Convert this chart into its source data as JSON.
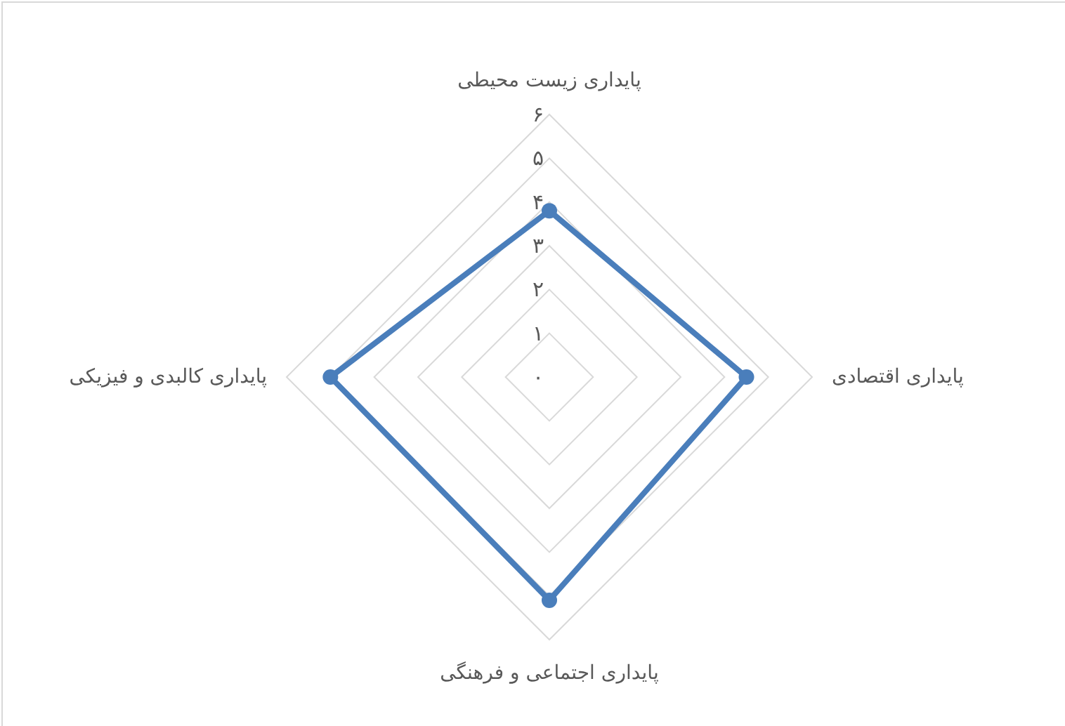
{
  "chart_data": {
    "type": "radar",
    "categories": [
      "پایداری زیست محیطی",
      "پایداری اقتصادی",
      "پایداری اجتماعی و فرهنگی",
      "پایداری کالبدی و فیزیکی"
    ],
    "series": [
      {
        "color": "#4a7ebb",
        "values": [
          3.8,
          4.5,
          5.1,
          5.0
        ]
      }
    ],
    "ylim": [
      0,
      6
    ],
    "yticks": [
      {
        "value": 0,
        "label": "۰"
      },
      {
        "value": 1,
        "label": "۱"
      },
      {
        "value": 2,
        "label": "۲"
      },
      {
        "value": 3,
        "label": "۳"
      },
      {
        "value": 4,
        "label": "۴"
      },
      {
        "value": 5,
        "label": "۵"
      },
      {
        "value": 6,
        "label": "۶"
      }
    ],
    "grid": true,
    "marker": "circle"
  }
}
